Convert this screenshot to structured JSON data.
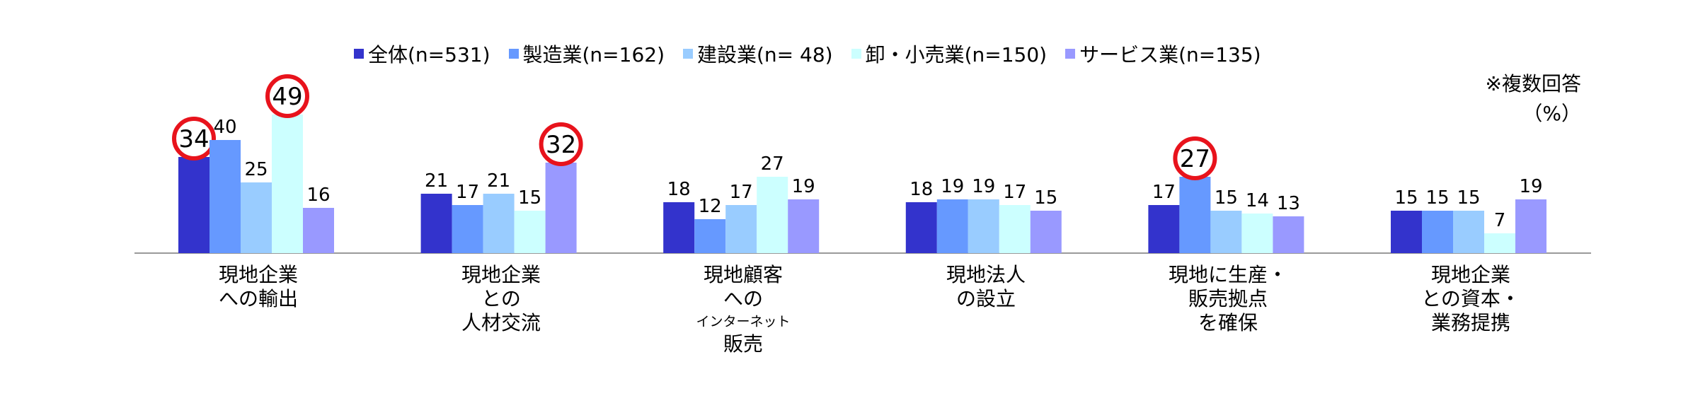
{
  "chart_data": {
    "type": "bar",
    "note": "※複数回答",
    "unit": "（%）",
    "series": [
      {
        "name": "全体(n=531)",
        "color": "#3333CC",
        "values": [
          34,
          21,
          18,
          18,
          17,
          15
        ]
      },
      {
        "name": "製造業(n=162)",
        "color": "#6699FF",
        "values": [
          40,
          17,
          12,
          19,
          27,
          15
        ]
      },
      {
        "name": "建設業(n= 48)",
        "color": "#99CCFF",
        "values": [
          25,
          21,
          17,
          19,
          15,
          15
        ]
      },
      {
        "name": "卸・小売業(n=150)",
        "color": "#CCFFFF",
        "values": [
          49,
          15,
          27,
          17,
          14,
          7
        ]
      },
      {
        "name": "サービス業(n=135)",
        "color": "#9999FF",
        "values": [
          16,
          32,
          19,
          15,
          13,
          19
        ]
      }
    ],
    "categories": [
      {
        "lines": [
          "現地企業",
          "への輸出"
        ],
        "small": []
      },
      {
        "lines": [
          "現地企業",
          "との",
          "人材交流"
        ],
        "small": []
      },
      {
        "lines": [
          "現地顧客",
          "へ",
          "の"
        ],
        "small": [
          "インターネット"
        ],
        "tail": [
          "販売"
        ]
      },
      {
        "lines": [
          "現地法人",
          "の設立"
        ],
        "small": []
      },
      {
        "lines": [
          "現地に生産・",
          "販売拠点",
          "を確保"
        ],
        "small": []
      },
      {
        "lines": [
          "現地企業",
          "との資本・",
          "業務提携"
        ],
        "small": []
      }
    ],
    "highlights": [
      {
        "category": 0,
        "series": 0
      },
      {
        "category": 0,
        "series": 3
      },
      {
        "category": 1,
        "series": 4
      },
      {
        "category": 4,
        "series": 1
      }
    ],
    "ylim": [
      0,
      55
    ]
  }
}
